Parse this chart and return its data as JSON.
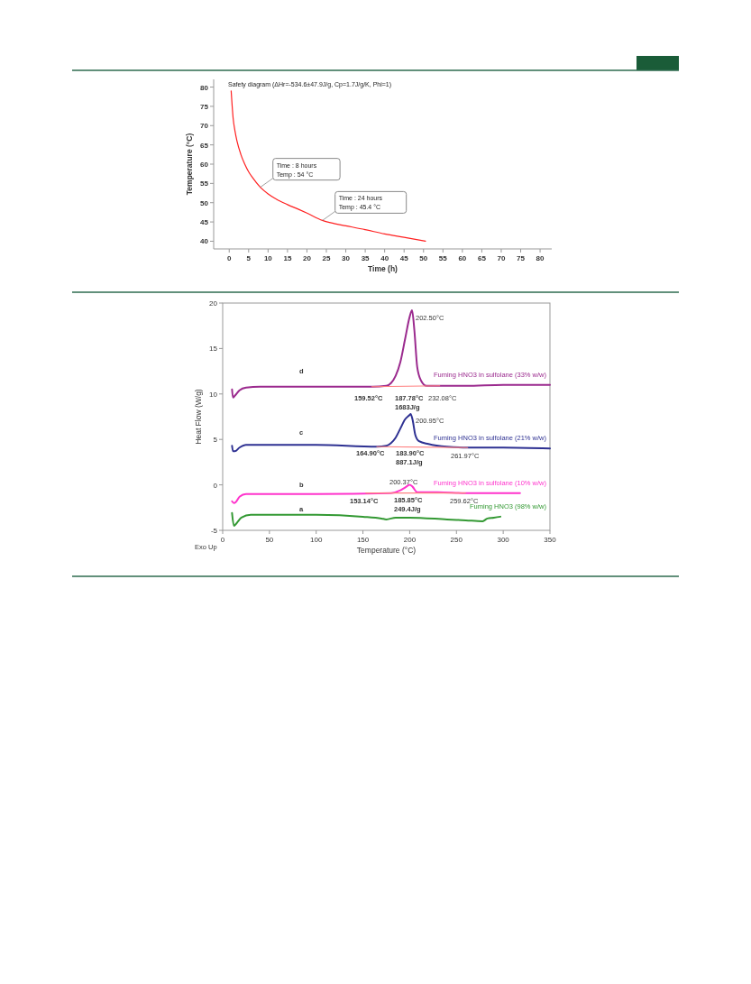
{
  "chart_data": [
    {
      "type": "line",
      "title": "Safety diagram (ΔHr=-534.6±47.9J/g, Cp=1.7J/g/K, Phi=1)",
      "xlabel": "Time (h)",
      "ylabel": "Temperature (°C)",
      "xlim": [
        -4,
        83
      ],
      "ylim": [
        38,
        82
      ],
      "xticks": [
        0,
        5,
        10,
        15,
        20,
        25,
        30,
        35,
        40,
        45,
        50,
        55,
        60,
        65,
        70,
        75,
        80
      ],
      "yticks": [
        40,
        45,
        50,
        55,
        60,
        65,
        70,
        75,
        80
      ],
      "series": [
        {
          "color": "#ff2020",
          "x": [
            0.5,
            1,
            1.5,
            2,
            3,
            4,
            5,
            6,
            8,
            10,
            12,
            15,
            18,
            20,
            24,
            27,
            30,
            35,
            40,
            45,
            50.5
          ],
          "values": [
            79,
            72,
            68.5,
            66,
            62.5,
            60,
            58,
            56.5,
            54,
            52.3,
            51,
            49.5,
            48.2,
            47.3,
            45.4,
            44.6,
            44,
            43,
            41.9,
            41,
            40
          ]
        }
      ],
      "annotations": [
        {
          "text": "Time : 8 hours\nTemp : 54 °C",
          "x": 8,
          "y": 54
        },
        {
          "text": "Time : 24 hours\nTemp : 45.4 °C",
          "x": 24,
          "y": 45.4
        }
      ]
    },
    {
      "type": "line",
      "xlabel": "Temperature (°C)",
      "ylabel": "Heat Flow (W/g)",
      "xlim": [
        0,
        350
      ],
      "ylim": [
        -5,
        20
      ],
      "xticks": [
        0,
        50,
        100,
        150,
        200,
        250,
        300,
        350
      ],
      "yticks": [
        -5,
        0,
        5,
        10,
        15,
        20
      ],
      "series": [
        {
          "name": "Fuming HNO3 in sulfolane (33% w/w)",
          "color": "#9b2a8e",
          "x": [
            10,
            11,
            13,
            18,
            25,
            40,
            100,
            160,
            175,
            180,
            185,
            190,
            195,
            200,
            202.5,
            205,
            208,
            212,
            218,
            230,
            260,
            300,
            350
          ],
          "values": [
            10.5,
            9.6,
            9.8,
            10.4,
            10.7,
            10.8,
            10.8,
            10.8,
            10.9,
            11.2,
            12,
            13.5,
            16,
            18.5,
            19.2,
            17,
            13,
            11.5,
            10.9,
            10.9,
            10.9,
            11,
            11
          ]
        },
        {
          "name": "Fuming HNO3 in sulfolane (21% w/w)",
          "color": "#2e3192",
          "x": [
            10,
            11,
            13,
            18,
            25,
            40,
            100,
            165,
            175,
            180,
            185,
            190,
            195,
            200,
            201,
            203,
            206,
            210,
            220,
            240,
            262,
            300,
            350
          ],
          "values": [
            4.3,
            3.7,
            3.7,
            4.1,
            4.4,
            4.4,
            4.4,
            4.2,
            4.3,
            4.6,
            5.2,
            6.2,
            7.2,
            7.7,
            7.8,
            7.2,
            5.5,
            4.8,
            4.5,
            4.2,
            4.1,
            4.1,
            4
          ]
        },
        {
          "name": "Fuming HNO3 in sulfolane (10% w/w)",
          "color": "#ff33cc",
          "x": [
            10,
            12,
            14,
            18,
            25,
            100,
            180,
            190,
            195,
            200,
            203,
            208,
            215,
            230,
            260,
            318
          ],
          "values": [
            -1.8,
            -2,
            -1.9,
            -1.3,
            -1,
            -1,
            -0.9,
            -0.6,
            -0.3,
            0,
            -0.2,
            -0.8,
            -0.8,
            -0.8,
            -0.9,
            -0.9
          ]
        },
        {
          "name": "Fuming HNO3 (98% w/w)",
          "color": "#339933",
          "x": [
            10,
            12,
            15,
            20,
            30,
            100,
            150,
            170,
            175,
            185,
            200,
            240,
            260,
            278,
            283,
            290,
            297
          ],
          "values": [
            -3.1,
            -4.5,
            -4.2,
            -3.6,
            -3.3,
            -3.3,
            -3.5,
            -3.7,
            -3.8,
            -3.6,
            -3.6,
            -3.8,
            -3.9,
            -4,
            -3.7,
            -3.6,
            -3.5
          ]
        },
        {
          "color": "#ff8080",
          "x": [
            159.52,
            232.08
          ],
          "values": [
            10.8,
            10.9
          ]
        },
        {
          "color": "#ff8080",
          "x": [
            164.9,
            261.97
          ],
          "values": [
            4.2,
            4.1
          ]
        },
        {
          "color": "#ff8080",
          "x": [
            153.14,
            259.62
          ],
          "values": [
            -0.9,
            -0.9
          ]
        }
      ],
      "annotations": [
        "202.50°C",
        "159.52°C",
        "187.78°C\n1683J/g",
        "232.08°C",
        "200.95°C",
        "164.90°C",
        "183.90°C",
        "887.1J/g",
        "261.97°C",
        "200.37°C",
        "153.14°C",
        "185.85°C\n249.4J/g",
        "259.62°C",
        "d",
        "c",
        "b",
        "a",
        "Exo Up"
      ]
    }
  ]
}
